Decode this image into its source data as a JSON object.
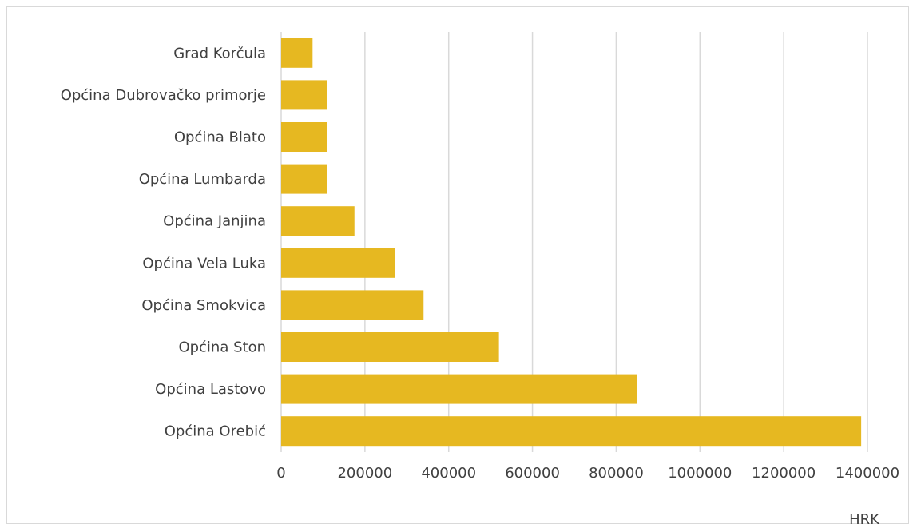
{
  "chart_data": {
    "type": "bar",
    "orientation": "horizontal",
    "categories": [
      "Grad Korčula",
      "Općina Dubrovačko primorje",
      "Općina Blato",
      "Općina Lumbarda",
      "Općina Janjina",
      "Općina Vela Luka",
      "Općina Smokvica",
      "Općina Ston",
      "Općina Lastovo",
      "Općina Orebić"
    ],
    "values": [
      75000,
      110000,
      110000,
      110000,
      175000,
      272000,
      340000,
      520000,
      850000,
      1385000
    ],
    "xlabel": "HRK",
    "ylabel": "",
    "xlim": [
      0,
      1400000
    ],
    "xticks": [
      "0",
      "200000",
      "400000",
      "600000",
      "800000",
      "1000000",
      "1200000",
      "1400000"
    ],
    "grid": "vertical",
    "legend": "none",
    "bar_color": "#e6b821",
    "grid_color": "#d9d9d9"
  }
}
